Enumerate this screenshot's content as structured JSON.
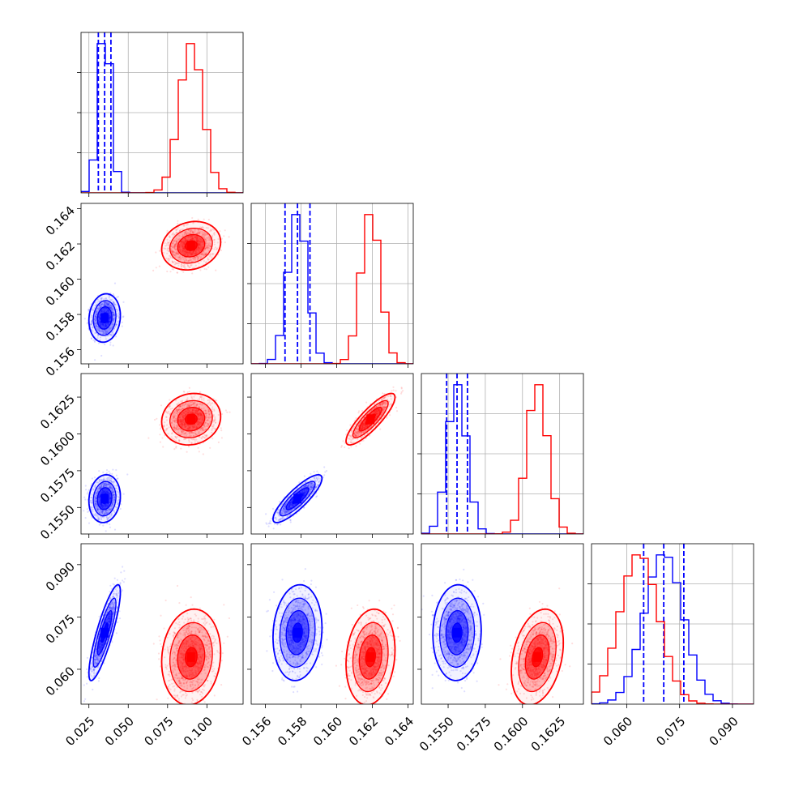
{
  "chart_data": {
    "type": "corner",
    "title": "",
    "grid": true,
    "series_colors": [
      "#0000ff",
      "#ff0000"
    ],
    "median_lines": "dashed",
    "parameters": [
      {
        "index": 0,
        "range": [
          0.02,
          0.123
        ],
        "ticks": [
          "0.025",
          "0.050",
          "0.075",
          "0.100"
        ],
        "tick_values": [
          0.025,
          0.05,
          0.075,
          0.1
        ]
      },
      {
        "index": 1,
        "range": [
          0.1552,
          0.1643
        ],
        "ticks": [
          "0.156",
          "0.158",
          "0.160",
          "0.162",
          "0.164"
        ],
        "tick_values": [
          0.156,
          0.158,
          0.16,
          0.162,
          0.164
        ]
      },
      {
        "index": 2,
        "range": [
          0.1532,
          0.1641
        ],
        "ticks": [
          "0.1550",
          "0.1575",
          "0.1600",
          "0.1625"
        ],
        "tick_values": [
          0.155,
          0.1575,
          0.16,
          0.1625
        ]
      },
      {
        "index": 3,
        "range": [
          0.05,
          0.096
        ],
        "ticks": [
          "0.060",
          "0.075",
          "0.090"
        ],
        "tick_values": [
          0.06,
          0.075,
          0.09
        ]
      }
    ],
    "series": [
      {
        "color": "#0000ff",
        "means": [
          0.035,
          0.1578,
          0.1556,
          0.0705
        ],
        "sigmas": [
          0.004,
          0.00055,
          0.00065,
          0.0055
        ],
        "correlations": {
          "1-0": 0.1,
          "2-0": 0.1,
          "2-1": 0.85,
          "3-0": 0.85,
          "3-1": 0.1,
          "3-2": 0.05
        },
        "quantiles": [
          [
            0.031,
            0.035,
            0.039
          ],
          [
            0.1571,
            0.1578,
            0.1585
          ],
          [
            0.1549,
            0.1556,
            0.1563
          ],
          [
            0.0648,
            0.0705,
            0.0762
          ]
        ]
      },
      {
        "color": "#ff0000",
        "means": [
          0.09,
          0.1619,
          0.161,
          0.0635
        ],
        "sigmas": [
          0.0075,
          0.00055,
          0.0007,
          0.0055
        ],
        "correlations": {
          "1-0": 0.15,
          "2-0": 0.1,
          "2-1": 0.85,
          "3-0": 0.1,
          "3-1": 0.15,
          "3-2": 0.3
        },
        "quantiles": null
      }
    ]
  }
}
